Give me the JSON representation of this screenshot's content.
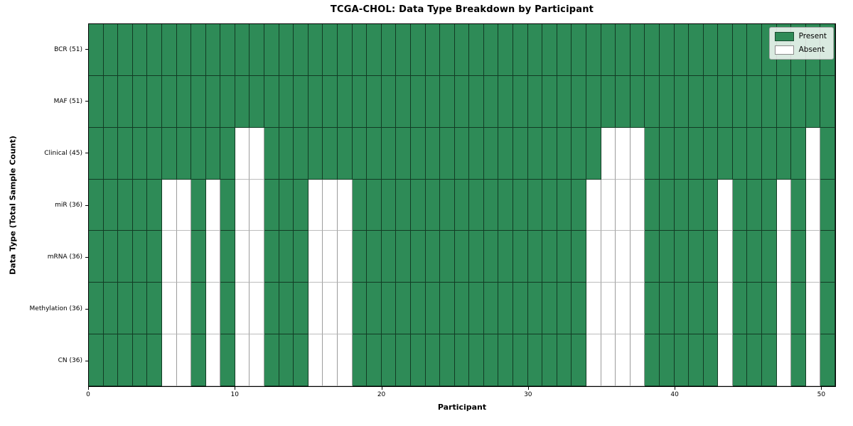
{
  "chart_data": {
    "type": "heatmap",
    "title": "TCGA-CHOL: Data Type Breakdown by Participant",
    "xlabel": "Participant",
    "ylabel": "Data Type (Total Sample Count)",
    "x_ticks": [
      0,
      10,
      20,
      30,
      40,
      50
    ],
    "xlim": [
      0,
      51
    ],
    "n_participants": 51,
    "grid": true,
    "legend": {
      "position": "upper right",
      "entries": [
        {
          "name": "present",
          "label": "Present",
          "color": "#2e8b57"
        },
        {
          "name": "absent",
          "label": "Absent",
          "color": "#ffffff"
        }
      ]
    },
    "colors": {
      "present": "#2e8b57",
      "absent": "#ffffff"
    },
    "rows": [
      {
        "label": "BCR (51)",
        "data_type": "BCR",
        "present_count": 51,
        "absent_participants": []
      },
      {
        "label": "MAF (51)",
        "data_type": "MAF",
        "present_count": 51,
        "absent_participants": []
      },
      {
        "label": "Clinical (45)",
        "data_type": "Clinical",
        "present_count": 45,
        "absent_participants": [
          10,
          11,
          35,
          36,
          37,
          49
        ]
      },
      {
        "label": "miR (36)",
        "data_type": "miR",
        "present_count": 36,
        "absent_participants": [
          5,
          6,
          8,
          10,
          11,
          15,
          16,
          17,
          34,
          35,
          36,
          37,
          43,
          47,
          49
        ]
      },
      {
        "label": "mRNA (36)",
        "data_type": "mRNA",
        "present_count": 36,
        "absent_participants": [
          5,
          6,
          8,
          10,
          11,
          15,
          16,
          17,
          34,
          35,
          36,
          37,
          43,
          47,
          49
        ]
      },
      {
        "label": "Methylation (36)",
        "data_type": "Methylation",
        "present_count": 36,
        "absent_participants": [
          5,
          6,
          8,
          10,
          11,
          15,
          16,
          17,
          34,
          35,
          36,
          37,
          43,
          47,
          49
        ]
      },
      {
        "label": "CN (36)",
        "data_type": "CN",
        "present_count": 36,
        "absent_participants": [
          5,
          6,
          8,
          10,
          11,
          15,
          16,
          17,
          34,
          35,
          36,
          37,
          43,
          47,
          49
        ]
      }
    ]
  }
}
